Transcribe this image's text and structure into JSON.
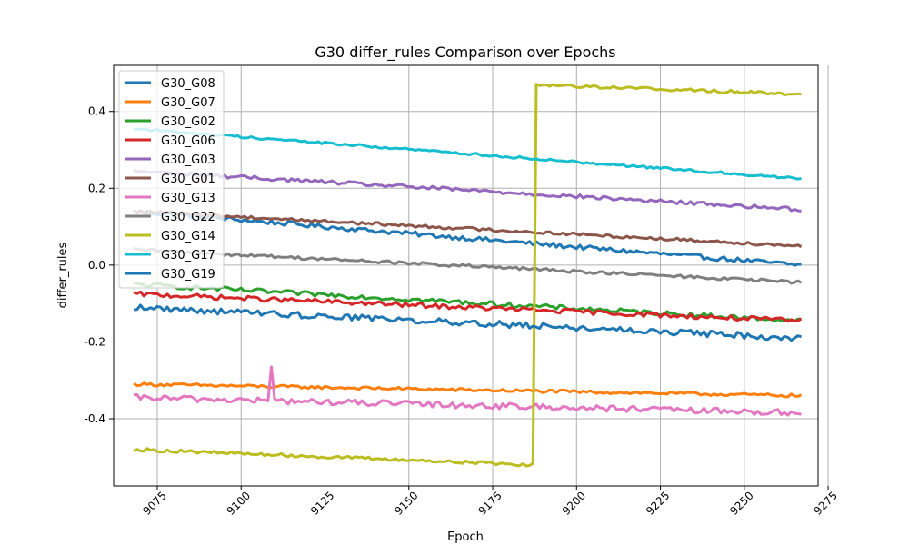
{
  "chart_data": {
    "type": "line",
    "title": "G30 differ_rules Comparison over Epochs",
    "xlabel": "Epoch",
    "ylabel": "differ_rules",
    "xlim": [
      9062,
      9272
    ],
    "ylim": [
      -0.575,
      0.52
    ],
    "xticks": [
      9075,
      9100,
      9125,
      9150,
      9175,
      9200,
      9225,
      9250,
      9275
    ],
    "yticks": [
      -0.4,
      -0.2,
      0.0,
      0.2,
      0.4
    ],
    "grid": true,
    "legend_position": "upper left",
    "x_start": 9068,
    "x_end": 9267,
    "series": [
      {
        "name": "G30_G08",
        "color": "#1f77b4",
        "start": 0.14,
        "end": 0.0,
        "noise": 0.006
      },
      {
        "name": "G30_G07",
        "color": "#ff7f0e",
        "start": -0.31,
        "end": -0.34,
        "noise": 0.004
      },
      {
        "name": "G30_G02",
        "color": "#2ca02c",
        "start": -0.05,
        "end": -0.145,
        "noise": 0.006
      },
      {
        "name": "G30_G06",
        "color": "#d62728",
        "start": -0.075,
        "end": -0.145,
        "noise": 0.006
      },
      {
        "name": "G30_G03",
        "color": "#9467bd",
        "start": 0.245,
        "end": 0.145,
        "noise": 0.005
      },
      {
        "name": "G30_G01",
        "color": "#8c564b",
        "start": 0.14,
        "end": 0.05,
        "noise": 0.004
      },
      {
        "name": "G30_G13",
        "color": "#e377c2",
        "start": -0.345,
        "end": -0.385,
        "noise": 0.008,
        "spike": {
          "x": 9109,
          "y": -0.265
        }
      },
      {
        "name": "G30_G22",
        "color": "#7f7f7f",
        "start": 0.04,
        "end": -0.045,
        "noise": 0.004
      },
      {
        "name": "G30_G14",
        "color": "#bcbd22",
        "start": -0.48,
        "end": 0.445,
        "noise": 0.004,
        "jump": {
          "x": 9188,
          "before_end": -0.52,
          "after_start": 0.47
        }
      },
      {
        "name": "G30_G17",
        "color": "#17becf",
        "start": 0.355,
        "end": 0.225,
        "noise": 0.003
      },
      {
        "name": "G30_G19",
        "color": "#1f77b4",
        "start": -0.11,
        "end": -0.19,
        "noise": 0.008
      }
    ]
  }
}
